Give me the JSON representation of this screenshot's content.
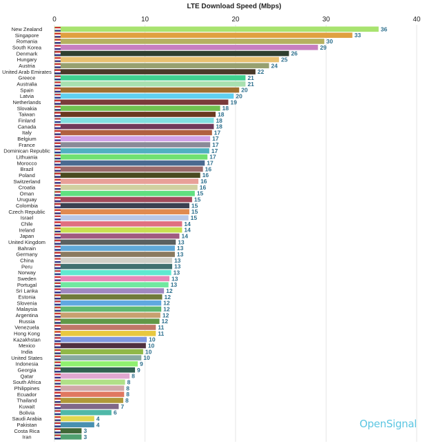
{
  "chart_data": {
    "type": "bar",
    "orientation": "horizontal",
    "title": "LTE Download Speed (Mbps)",
    "xlim": [
      0,
      40
    ],
    "xticks": [
      0,
      10,
      20,
      30,
      40
    ],
    "grid": true,
    "value_label_color": "#2b6e8c",
    "categories": [
      "New Zealand",
      "Singapore",
      "Romania",
      "South Korea",
      "Denmark",
      "Hungary",
      "Austria",
      "United Arab Emirates",
      "Greece",
      "Australia",
      "Spain",
      "Latvia",
      "Netherlands",
      "Slovakia",
      "Taiwan",
      "Finland",
      "Canada",
      "Italy",
      "Belgium",
      "France",
      "Dominican Republic",
      "Lithuania",
      "Morocco",
      "Brazil",
      "Poland",
      "Switzerland",
      "Croatia",
      "Oman",
      "Uruguay",
      "Colombia",
      "Czech Republic",
      "Israel",
      "Chile",
      "Ireland",
      "Japan",
      "United Kingdom",
      "Bahrain",
      "Germany",
      "China",
      "Peru",
      "Norway",
      "Sweden",
      "Portugal",
      "Sri Lanka",
      "Estonia",
      "Slovenia",
      "Malaysia",
      "Argentina",
      "Russia",
      "Venezuela",
      "Hong Kong",
      "Kazakhstan",
      "Mexico",
      "India",
      "United States",
      "Indonesia",
      "Georgia",
      "Qatar",
      "South Africa",
      "Philippines",
      "Ecuador",
      "Thailand",
      "Kuwait",
      "Bolivia",
      "Saudi Arabia",
      "Pakistan",
      "Costa Rica",
      "Iran"
    ],
    "values": [
      35.8,
      32.9,
      29.8,
      29.1,
      25.9,
      24.8,
      23.7,
      22.2,
      21.1,
      21.1,
      20.4,
      19.8,
      19.2,
      18.3,
      17.8,
      17.6,
      17.6,
      17.4,
      17.2,
      17.2,
      17.1,
      16.9,
      16.6,
      16.4,
      16.1,
      15.9,
      15.8,
      15.5,
      15.2,
      14.9,
      14.9,
      14.8,
      14.1,
      14.1,
      13.8,
      13.4,
      13.3,
      13.3,
      13.0,
      13.0,
      12.9,
      12.7,
      12.6,
      12.1,
      11.9,
      11.8,
      11.8,
      11.7,
      11.6,
      11.2,
      11.2,
      10.2,
      10.1,
      9.8,
      9.6,
      9.2,
      8.9,
      8.3,
      7.8,
      7.7,
      7.7,
      7.6,
      7.1,
      6.3,
      4.4,
      4.4,
      3.0,
      3.0
    ],
    "labels": [
      "36",
      "33",
      "30",
      "29",
      "26",
      "25",
      "24",
      "22",
      "21",
      "21",
      "20",
      "20",
      "19",
      "18",
      "18",
      "18",
      "18",
      "17",
      "17",
      "17",
      "17",
      "17",
      "17",
      "16",
      "16",
      "16",
      "16",
      "15",
      "15",
      "15",
      "15",
      "15",
      "14",
      "14",
      "14",
      "13",
      "13",
      "13",
      "13",
      "13",
      "13",
      "13",
      "13",
      "12",
      "12",
      "12",
      "12",
      "12",
      "12",
      "11",
      "11",
      "10",
      "10",
      "10",
      "10",
      "9",
      "9",
      "8",
      "8",
      "8",
      "8",
      "8",
      "7",
      "6",
      "4",
      "4",
      "3",
      "3"
    ],
    "colors": [
      "#a8e36f",
      "#e0a040",
      "#b5b060",
      "#c77fc0",
      "#2f3f2f",
      "#e8c070",
      "#97a070",
      "#4a3a2a",
      "#40d090",
      "#a8e0b0",
      "#a07030",
      "#60d0f0",
      "#7a3a3a",
      "#70c050",
      "#6a3a20",
      "#80e0e0",
      "#703a5a",
      "#b06040",
      "#d0a0e8",
      "#8a8a98",
      "#50b0c0",
      "#70e070",
      "#4a6a90",
      "#9a6a6a",
      "#4a4a20",
      "#e8a098",
      "#d0d0a0",
      "#60e080",
      "#a04a5a",
      "#3a4050",
      "#e08a50",
      "#b8c8e8",
      "#e07080",
      "#c8e050",
      "#a05a80",
      "#5a6060",
      "#60a8d8",
      "#8a7a60",
      "#d0d0c8",
      "#407070",
      "#60e8d0",
      "#e888b8",
      "#70e8a0",
      "#a088c0",
      "#707a3a",
      "#60a8e0",
      "#60b870",
      "#c8a070",
      "#609848",
      "#c07868",
      "#e8c840",
      "#8098e0",
      "#503040",
      "#90b848",
      "#88aaa0",
      "#90f070",
      "#306050",
      "#e0a8d0",
      "#b0e088",
      "#d0a8a8",
      "#e07860",
      "#b09838",
      "#806888",
      "#50b8a8",
      "#e0d850",
      "#4890b0",
      "#406838",
      "#50a070"
    ]
  },
  "branding": {
    "logo": "OpenSignal"
  }
}
